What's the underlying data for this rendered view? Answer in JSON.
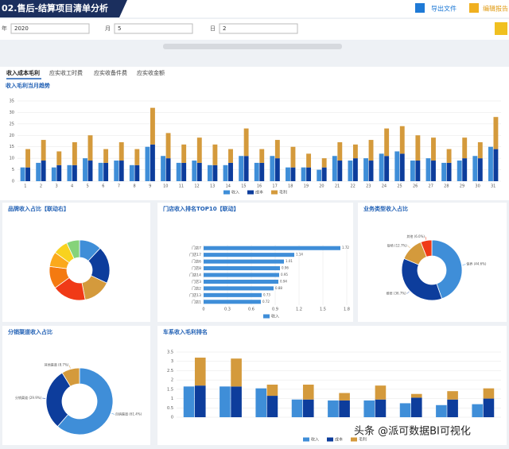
{
  "header": {
    "title": "02.售后-结算项目清单分析",
    "export": "导出文件",
    "edit": "编辑报告"
  },
  "filters": [
    {
      "label": "年",
      "value": "2020"
    },
    {
      "label": "月",
      "value": "5"
    },
    {
      "label": "日",
      "value": "2"
    }
  ],
  "tabs": [
    "收入成本毛利",
    "应实收工时费",
    "应实收备件费",
    "应实收金额"
  ],
  "chart_data": [
    {
      "type": "bar",
      "title": "收入毛利当月趋势",
      "categories": [
        "1",
        "2",
        "3",
        "4",
        "5",
        "6",
        "7",
        "8",
        "9",
        "10",
        "11",
        "12",
        "13",
        "14",
        "15",
        "16",
        "17",
        "18",
        "19",
        "20",
        "21",
        "22",
        "23",
        "24",
        "25",
        "26",
        "27",
        "28",
        "29",
        "30",
        "31"
      ],
      "series": [
        {
          "name": "收入",
          "color": "#3f8ed8",
          "values": [
            6,
            8,
            6,
            7,
            10,
            8,
            9,
            7,
            15,
            11,
            8,
            9,
            7,
            7,
            11,
            8,
            11,
            6,
            6,
            5,
            11,
            9,
            10,
            12,
            13,
            9,
            10,
            8,
            9,
            11,
            15
          ]
        },
        {
          "name": "成本",
          "color": "#0d3d9c",
          "values": [
            6,
            9,
            7,
            7,
            9,
            8,
            9,
            7,
            16,
            10,
            8,
            8,
            7,
            8,
            11,
            8,
            10,
            6,
            6,
            6,
            9,
            10,
            9,
            11,
            12,
            9,
            9,
            8,
            10,
            10,
            14
          ]
        },
        {
          "name": "毛利",
          "color": "#d49a3c",
          "values": [
            8,
            9,
            6,
            10,
            11,
            6,
            8,
            7,
            16,
            11,
            8,
            11,
            9,
            6,
            12,
            6,
            8,
            9,
            6,
            4,
            8,
            6,
            9,
            12,
            12,
            11,
            10,
            6,
            9,
            7,
            14
          ]
        }
      ],
      "ylim": [
        0,
        35
      ],
      "yticks": [
        0,
        5,
        10,
        15,
        20,
        25,
        30,
        35
      ],
      "grid": true
    },
    {
      "type": "pie",
      "title": "品牌收入占比【联动右】",
      "values": [
        12,
        20,
        15,
        18,
        12,
        8,
        8,
        7
      ],
      "colors": [
        "#3f8ed8",
        "#0d3d9c",
        "#d49a3c",
        "#f03a17",
        "#f47a10",
        "#fba91c",
        "#f8d21e",
        "#86d37a"
      ]
    },
    {
      "type": "hbar",
      "title": "门店收入排名TOP10【联动】",
      "categories": [
        "门店7",
        "门店17",
        "门店6",
        "门店8",
        "门店14",
        "门店3",
        "门店2",
        "门店13",
        "门店1"
      ],
      "series": [
        {
          "name": "收入",
          "color": "#3f8ed8",
          "values": [
            1.72,
            1.14,
            1.01,
            0.96,
            0.95,
            0.94,
            0.88,
            0.73,
            0.72
          ]
        }
      ],
      "xlim": [
        0,
        1.8
      ],
      "xticks": [
        0,
        0.3,
        0.6,
        0.9,
        1.2,
        1.5,
        1.8
      ],
      "grid": true
    },
    {
      "type": "pie",
      "title": "业务类型收入占比",
      "categories": [
        "保养",
        "维修",
        "钣喷",
        "其他"
      ],
      "values": [
        44.6,
        36.7,
        12.7,
        6.0
      ],
      "value_labels": [
        "保养 (44.6%)",
        "维修 (36.7%)",
        "钣喷 (12.7%)",
        "其他 (6.0%)"
      ],
      "colors": [
        "#3f8ed8",
        "#0d3d9c",
        "#d49a3c",
        "#f03a17"
      ]
    },
    {
      "type": "pie",
      "title": "分销渠道收入占比",
      "values": [
        61.4,
        29.9,
        8.7
      ],
      "value_labels": [
        "自销渠道 (61.4%)",
        "分销渠道 (29.9%)",
        "其他渠道 (8.7%)"
      ],
      "colors": [
        "#3f8ed8",
        "#0d3d9c",
        "#d49a3c"
      ]
    },
    {
      "type": "bar",
      "title": "车系收入毛利排名",
      "categories": [
        null,
        null,
        null,
        null,
        null,
        null,
        null,
        null,
        null
      ],
      "series": [
        {
          "name": "收入",
          "color": "#3f8ed8",
          "values": [
            1.65,
            1.65,
            1.55,
            0.95,
            0.9,
            0.9,
            0.75,
            0.65,
            0.7
          ]
        },
        {
          "name": "成本",
          "color": "#0d3d9c",
          "values": [
            1.7,
            1.65,
            1.15,
            0.95,
            0.9,
            0.95,
            1.05,
            0.95,
            1.0
          ]
        },
        {
          "name": "毛利",
          "color": "#d49a3c",
          "values": [
            1.5,
            1.5,
            0.6,
            0.8,
            0.4,
            0.75,
            0.2,
            0.45,
            0.55
          ]
        }
      ],
      "ylim": [
        0,
        3.5
      ],
      "yticks": [
        0,
        0.5,
        1,
        1.5,
        2,
        2.5,
        3,
        3.5
      ],
      "grid": true
    }
  ],
  "watermark": "头条 @派可数据BI可视化"
}
